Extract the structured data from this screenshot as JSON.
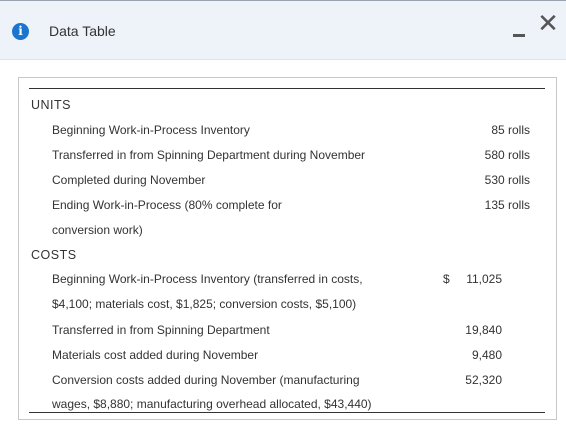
{
  "window": {
    "title": "Data Table",
    "minimize_label": "–",
    "close_label": "✕",
    "info_label": "i"
  },
  "table": {
    "units_header": "UNITS",
    "units": [
      {
        "label": "Beginning Work-in-Process Inventory",
        "value": "85 rolls"
      },
      {
        "label": "Transferred in from Spinning Department during November",
        "value": "580 rolls"
      },
      {
        "label": "Completed during November",
        "value": "530 rolls"
      },
      {
        "label": "Ending Work-in-Process (80% complete for",
        "value": "135 rolls"
      },
      {
        "label": "conversion work)",
        "value": ""
      }
    ],
    "costs_header": "COSTS",
    "currency_symbol": "$",
    "costs": [
      {
        "label": "Beginning Work-in-Process Inventory (transferred in costs,",
        "value": "11,025"
      },
      {
        "label": "$4,100; materials cost, $1,825; conversion costs, $5,100)",
        "value": ""
      },
      {
        "label": "Transferred in from Spinning Department",
        "value": "19,840"
      },
      {
        "label": "Materials cost added during November",
        "value": "9,480"
      },
      {
        "label": "Conversion costs added during November (manufacturing",
        "value": "52,320"
      },
      {
        "label": "wages, $8,880; manufacturing overhead allocated, $43,440)",
        "value": ""
      }
    ]
  }
}
